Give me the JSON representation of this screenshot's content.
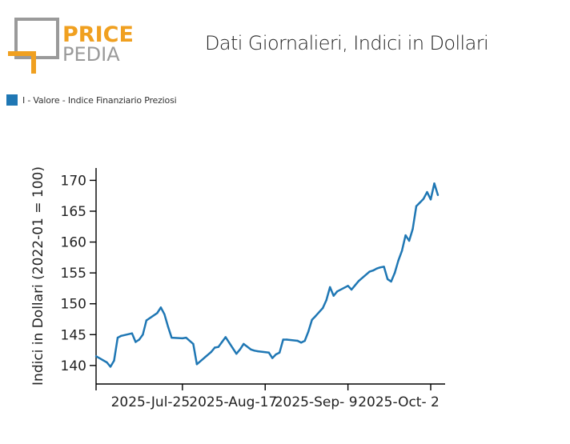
{
  "logo": {
    "line1": "PRICE",
    "line2": "PEDIA"
  },
  "colors": {
    "series": "#1f77b4",
    "logo_orange": "#f0a020",
    "logo_gray": "#9a9a9a"
  },
  "chart_data": {
    "type": "line",
    "title": "Dati Giornalieri, Indici in Dollari",
    "xlabel": "",
    "ylabel": "Indici in Dollari (2022-01 = 100)",
    "ylim": [
      137,
      172
    ],
    "y_ticks": [
      140,
      145,
      150,
      155,
      160,
      165,
      170
    ],
    "x_range": [
      "2025-07-01",
      "2025-10-06"
    ],
    "x_tick_dates": [
      "2025-07-01",
      "2025-07-25",
      "2025-08-17",
      "2025-09-09",
      "2025-10-02"
    ],
    "x_tick_labels": [
      "",
      "2025-Jul-25",
      "2025-Aug-17",
      "2025-Sep- 9",
      "2025-Oct- 2"
    ],
    "legend_position": "top-left",
    "grid": false,
    "series": [
      {
        "name": "I - Valore - Indice Finanziario Preziosi",
        "x": [
          "2025-07-01",
          "2025-07-04",
          "2025-07-05",
          "2025-07-06",
          "2025-07-07",
          "2025-07-08",
          "2025-07-11",
          "2025-07-12",
          "2025-07-13",
          "2025-07-14",
          "2025-07-15",
          "2025-07-18",
          "2025-07-19",
          "2025-07-20",
          "2025-07-21",
          "2025-07-22",
          "2025-07-25",
          "2025-07-26",
          "2025-07-28",
          "2025-07-29",
          "2025-08-02",
          "2025-08-03",
          "2025-08-04",
          "2025-08-05",
          "2025-08-06",
          "2025-08-08",
          "2025-08-09",
          "2025-08-10",
          "2025-08-11",
          "2025-08-13",
          "2025-08-14",
          "2025-08-15",
          "2025-08-18",
          "2025-08-19",
          "2025-08-20",
          "2025-08-21",
          "2025-08-22",
          "2025-08-23",
          "2025-08-26",
          "2025-08-27",
          "2025-08-28",
          "2025-08-29",
          "2025-08-30",
          "2025-08-31",
          "2025-09-02",
          "2025-09-03",
          "2025-09-04",
          "2025-09-05",
          "2025-09-06",
          "2025-09-09",
          "2025-09-10",
          "2025-09-11",
          "2025-09-12",
          "2025-09-15",
          "2025-09-16",
          "2025-09-17",
          "2025-09-18",
          "2025-09-19",
          "2025-09-20",
          "2025-09-21",
          "2025-09-22",
          "2025-09-23",
          "2025-09-24",
          "2025-09-25",
          "2025-09-26",
          "2025-09-27",
          "2025-09-28",
          "2025-09-29",
          "2025-09-30",
          "2025-10-01",
          "2025-10-02",
          "2025-10-03",
          "2025-10-04"
        ],
        "values": [
          141.5,
          140.5,
          139.8,
          140.8,
          144.5,
          144.8,
          145.2,
          143.8,
          144.2,
          145.0,
          147.3,
          148.5,
          149.4,
          148.3,
          146.3,
          144.5,
          144.4,
          144.5,
          143.5,
          140.2,
          142.2,
          142.9,
          143.0,
          143.8,
          144.6,
          142.8,
          141.9,
          142.6,
          143.5,
          142.6,
          142.4,
          142.3,
          142.1,
          141.2,
          141.8,
          142.1,
          144.2,
          144.2,
          144.0,
          143.7,
          144.0,
          145.5,
          147.4,
          148.0,
          149.3,
          150.6,
          152.7,
          151.3,
          152.0,
          152.9,
          152.3,
          153.0,
          153.7,
          155.2,
          155.4,
          155.7,
          155.9,
          156.0,
          154.0,
          153.6,
          155.0,
          157.0,
          158.6,
          161.1,
          160.2,
          162.1,
          165.8,
          166.4,
          167.0,
          168.1,
          166.9,
          169.5,
          167.6
        ]
      }
    ]
  }
}
